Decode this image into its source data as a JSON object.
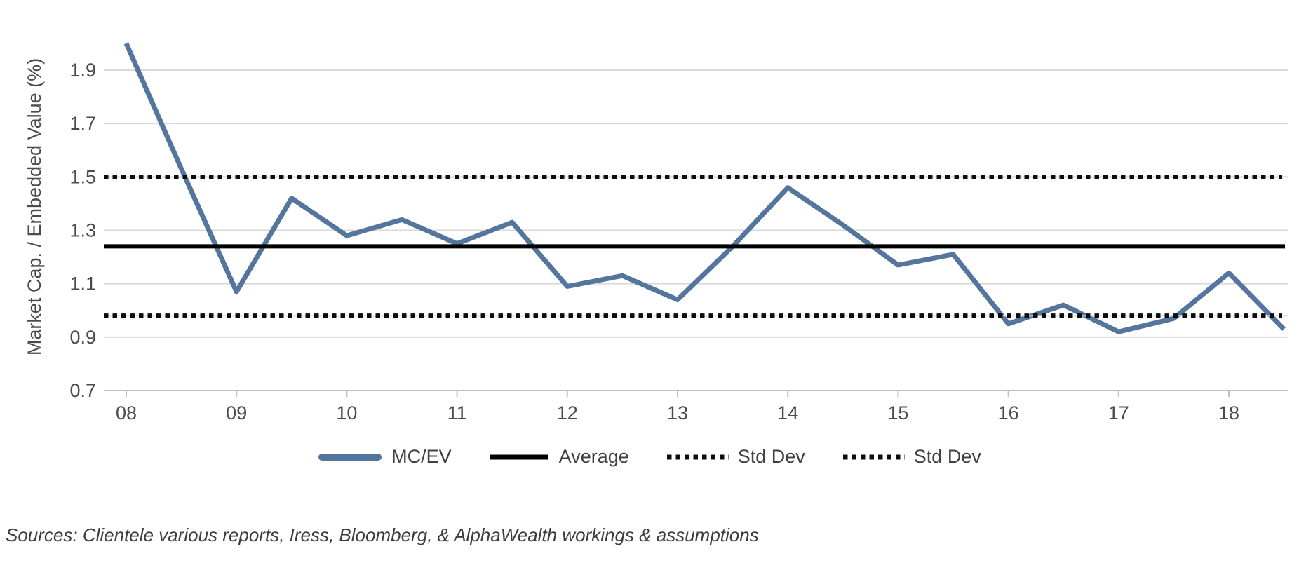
{
  "chart_data": {
    "type": "line",
    "title": "",
    "xlabel": "",
    "ylabel": "Market Cap. / Embedded Value (%)",
    "ylim": [
      0.7,
      2.08
    ],
    "grid": "horizontal",
    "legend_position": "bottom",
    "x": [
      2008,
      2008.5,
      2009,
      2009.5,
      2010,
      2010.5,
      2011,
      2011.5,
      2012,
      2012.5,
      2013,
      2013.5,
      2014,
      2014.5,
      2015,
      2015.5,
      2016,
      2016.5,
      2017,
      2017.5,
      2018,
      2018.5
    ],
    "series": [
      {
        "name": "MC/EV",
        "values": [
          2.0,
          1.53,
          1.07,
          1.42,
          1.28,
          1.34,
          1.25,
          1.33,
          1.09,
          1.13,
          1.04,
          1.24,
          1.46,
          1.32,
          1.17,
          1.21,
          0.95,
          1.02,
          0.92,
          0.97,
          1.14,
          0.93
        ]
      }
    ],
    "reference_lines": {
      "average": 1.24,
      "std_dev_upper": 1.5,
      "std_dev_lower": 0.98
    },
    "y_ticks": [
      0.7,
      0.9,
      1.1,
      1.3,
      1.5,
      1.7,
      1.9
    ],
    "y_tick_labels": [
      "0.7",
      "0.9",
      "1.1",
      "1.3",
      "1.5",
      "1.7",
      "1.9"
    ],
    "x_ticks": [
      2008,
      2009,
      2010,
      2011,
      2012,
      2013,
      2014,
      2015,
      2016,
      2017,
      2018
    ],
    "x_tick_labels": [
      "08",
      "09",
      "10",
      "11",
      "12",
      "13",
      "14",
      "15",
      "16",
      "17",
      "18"
    ],
    "colors": {
      "mcev_line": "#54759c",
      "average_line": "#000000",
      "std_dev_line": "#0d0d0d",
      "std_dev_backing": "#d9d9d9",
      "gridline": "#d9d9d9",
      "axis_line": "#c0c0c0",
      "tick_label": "#4a4b52",
      "legend_text": "#404040"
    }
  },
  "legend": {
    "items": [
      {
        "label": "MC/EV",
        "style": "solid-blue"
      },
      {
        "label": "Average",
        "style": "solid-black"
      },
      {
        "label": "Std Dev",
        "style": "dotted-black"
      },
      {
        "label": "Std Dev",
        "style": "dotted-black"
      }
    ]
  },
  "footer": {
    "sources": "Sources: Clientele various reports, Iress, Bloomberg, & AlphaWealth workings & assumptions"
  }
}
